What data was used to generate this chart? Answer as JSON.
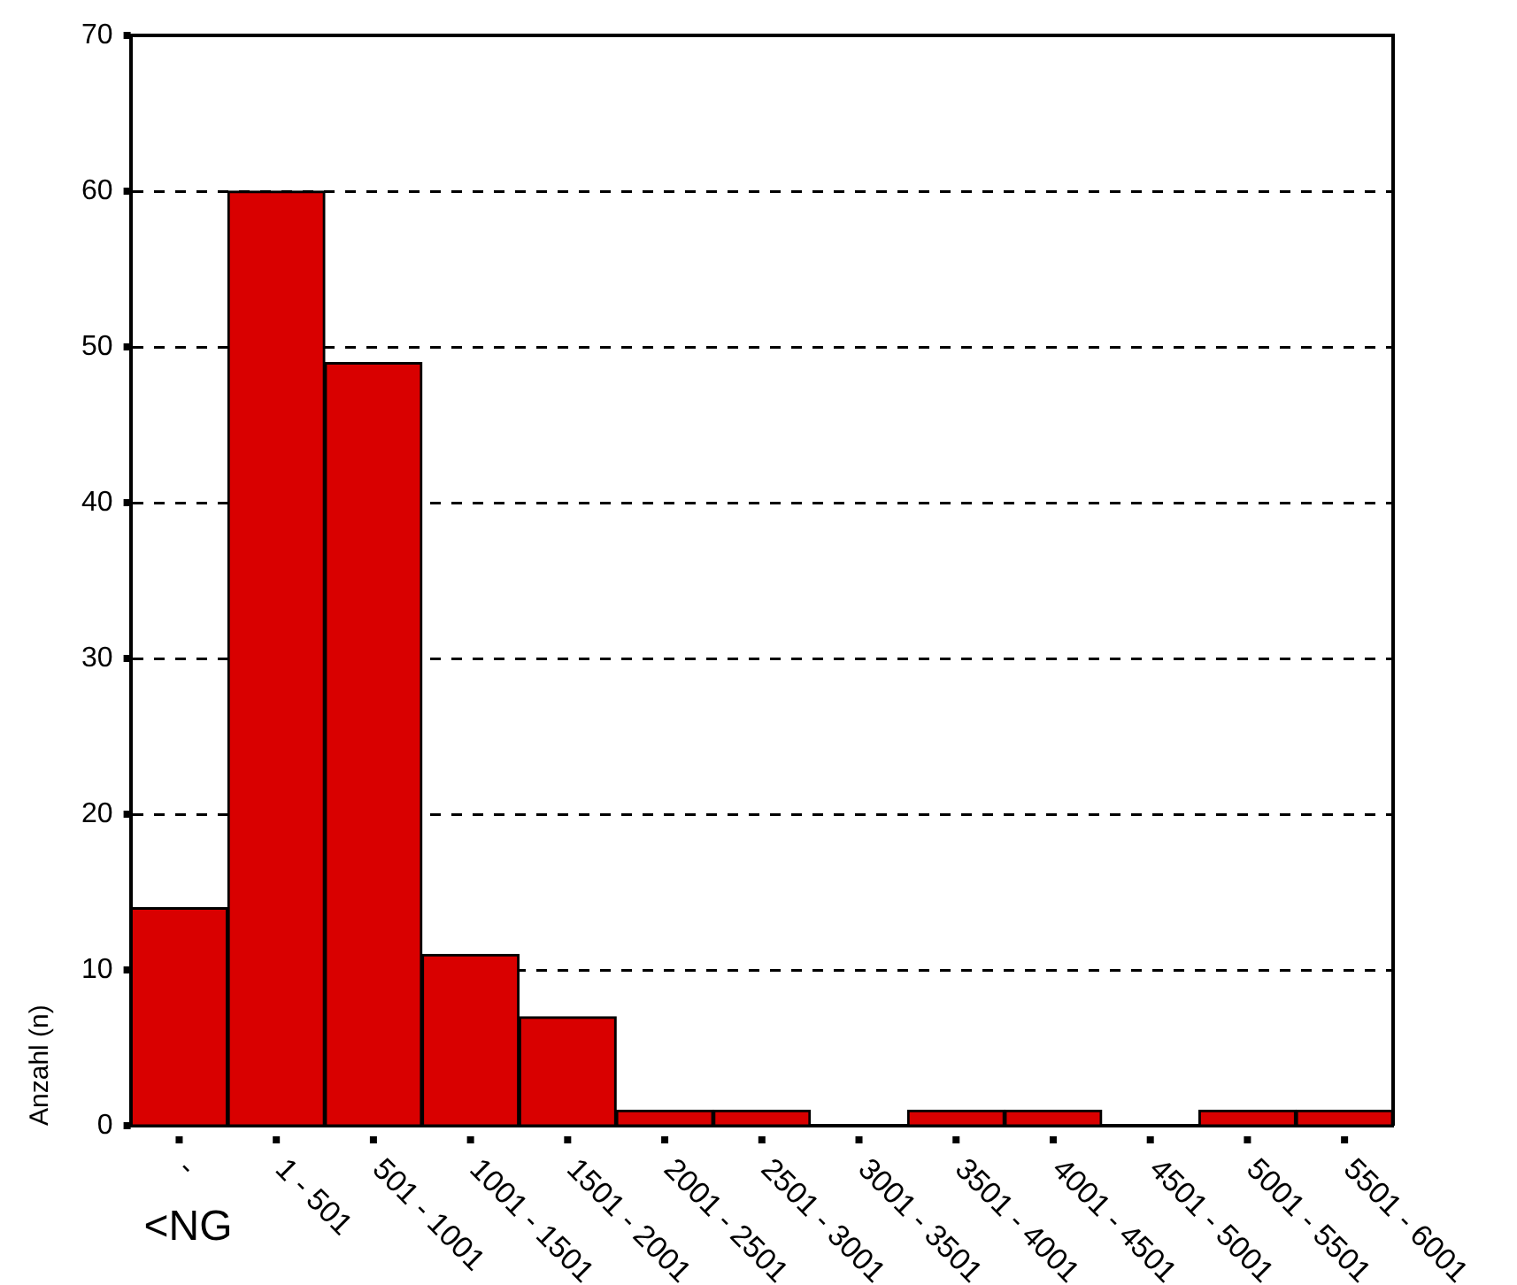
{
  "chart_data": {
    "type": "bar",
    "ylabel": "Anzahl (n)",
    "categories": [
      "-",
      "1 - 501",
      "501 - 1001",
      "1001 - 1501",
      "1501 - 2001",
      "2001 - 2501",
      "2501 - 3001",
      "3001 - 3501",
      "3501 - 4001",
      "4001 - 4501",
      "4501 - 5001",
      "5001 - 5501",
      "5501 - 6001"
    ],
    "values": [
      14,
      60,
      49,
      11,
      7,
      1,
      1,
      0,
      1,
      1,
      0,
      1,
      1
    ],
    "color": "#d90000",
    "ylim": [
      0,
      70
    ],
    "yticks": [
      0,
      10,
      20,
      30,
      40,
      50,
      60,
      70
    ],
    "grid": "y",
    "annotations": [
      "<NG"
    ]
  }
}
